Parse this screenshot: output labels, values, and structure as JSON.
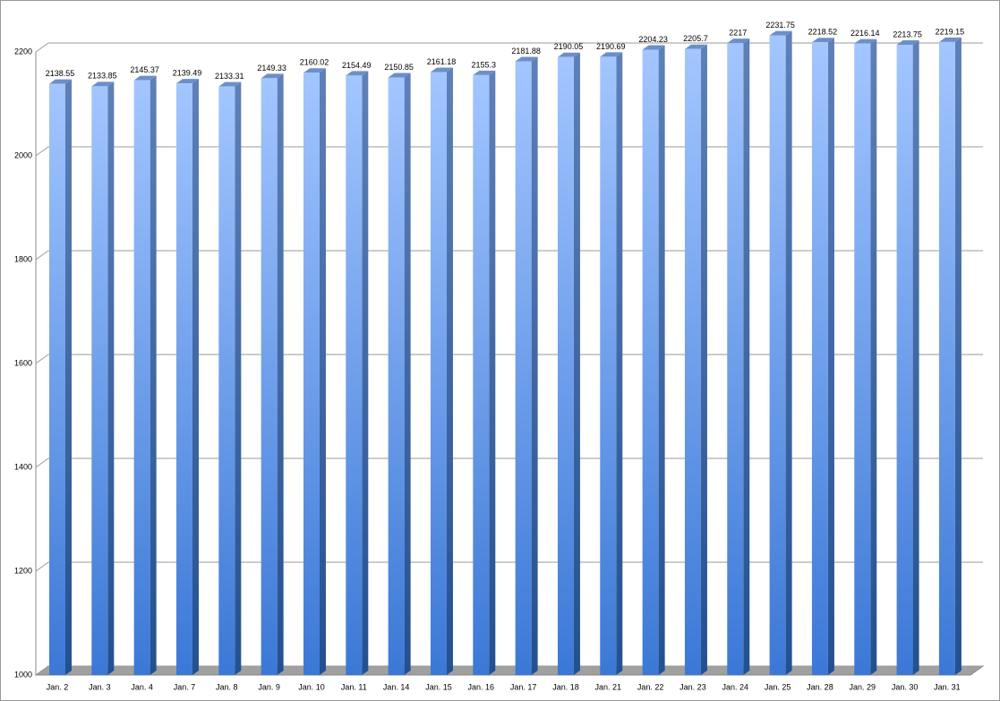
{
  "chart_data": {
    "type": "bar",
    "categories": [
      "Jan. 2",
      "Jan. 3",
      "Jan. 4",
      "Jan. 7",
      "Jan. 8",
      "Jan. 9",
      "Jan. 10",
      "Jan. 11",
      "Jan. 14",
      "Jan. 15",
      "Jan. 16",
      "Jan. 17",
      "Jan. 18",
      "Jan. 21",
      "Jan. 22",
      "Jan. 23",
      "Jan. 24",
      "Jan. 25",
      "Jan. 28",
      "Jan. 29",
      "Jan. 30",
      "Jan. 31"
    ],
    "values": [
      2138.55,
      2133.85,
      2145.37,
      2139.49,
      2133.31,
      2149.33,
      2160.02,
      2154.49,
      2150.85,
      2161.18,
      2155.3,
      2181.88,
      2190.05,
      2190.69,
      2204.23,
      2205.7,
      2217,
      2231.75,
      2218.52,
      2216.14,
      2213.75,
      2219.15
    ],
    "color": "#5b93e6",
    "ylim": [
      1000,
      2200
    ],
    "yticks": [
      1000,
      1200,
      1400,
      1600,
      1800,
      2000,
      2200
    ],
    "grid": true
  }
}
